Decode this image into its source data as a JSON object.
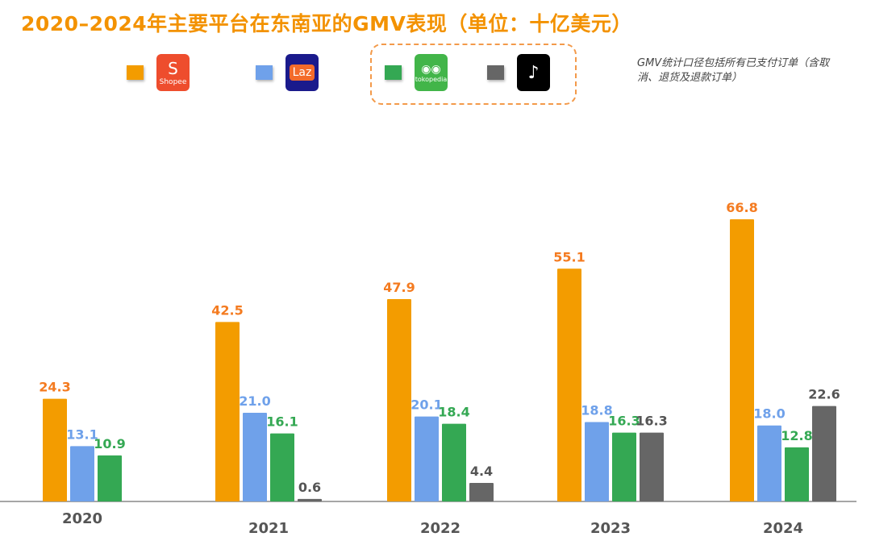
{
  "title": "2020–2024年主要平台在东南亚的GMV表现（单位：十亿美元）",
  "note": "GMV统计口径包括所有已支付订单（含取消、退货及退款订单）",
  "legend": [
    {
      "logo_text": "Shopee",
      "color": "#f39c00",
      "logo_bg": "#ee4d2d"
    },
    {
      "logo_text": "Laz",
      "color": "#6fa1ea",
      "logo_bg": "#1a1a8c"
    },
    {
      "logo_text": "tokopedia",
      "color": "#34a853",
      "logo_bg": "#42b549"
    },
    {
      "logo_text": "TikTok Shop",
      "color": "#666666",
      "logo_bg": "#000000"
    }
  ],
  "chart_data": {
    "type": "bar",
    "categories": [
      "2020",
      "2021",
      "2022",
      "2023",
      "2024"
    ],
    "series": [
      {
        "name": "Shopee",
        "color": "#f39c00",
        "label_color": "#f47b20",
        "values": [
          24.3,
          42.5,
          47.9,
          55.1,
          66.8
        ]
      },
      {
        "name": "Lazada",
        "color": "#6fa1ea",
        "label_color": "#6fa1ea",
        "values": [
          13.1,
          21.0,
          20.1,
          18.8,
          18.0
        ]
      },
      {
        "name": "Tokopedia",
        "color": "#34a853",
        "label_color": "#34a853",
        "values": [
          10.9,
          16.1,
          18.4,
          16.3,
          12.8
        ]
      },
      {
        "name": "TikTok Shop",
        "color": "#666666",
        "label_color": "#555555",
        "values": [
          null,
          0.6,
          4.4,
          16.3,
          22.6
        ]
      }
    ],
    "ylim": [
      0,
      70
    ],
    "grid": false
  }
}
